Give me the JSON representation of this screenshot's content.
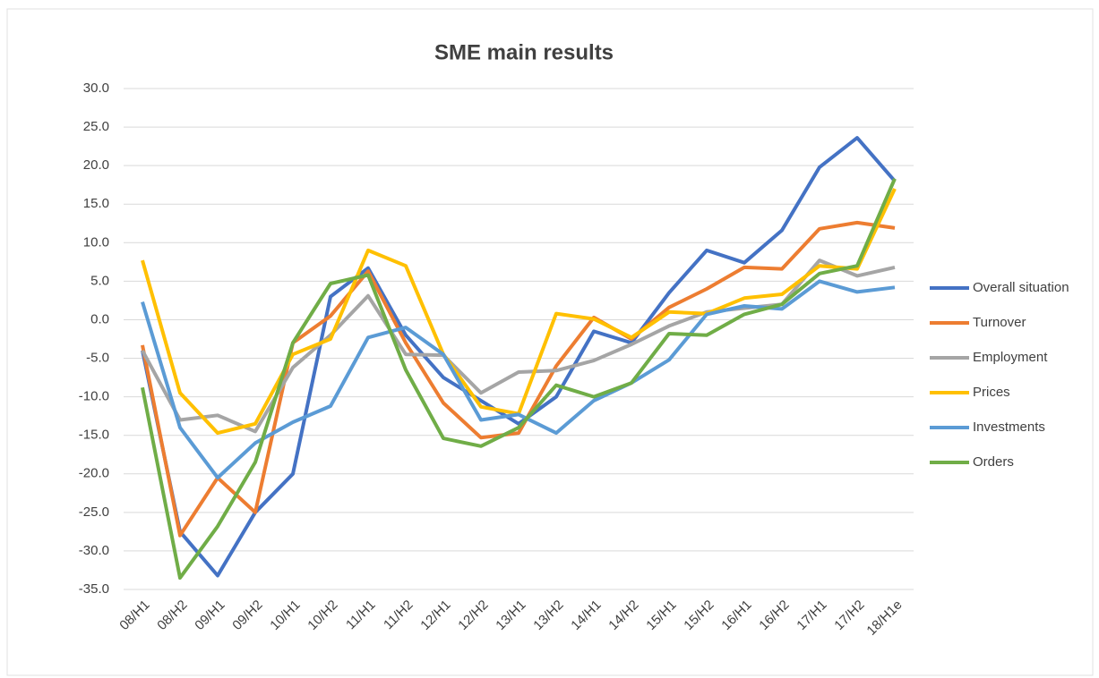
{
  "chart_data": {
    "type": "line",
    "title": "SME main results",
    "categories": [
      "08/H1",
      "08/H2",
      "09/H1",
      "09/H2",
      "10/H1",
      "10/H2",
      "11/H1",
      "11/H2",
      "12/H1",
      "12/H2",
      "13/H1",
      "13/H2",
      "14/H1",
      "14/H2",
      "15/H1",
      "15/H2",
      "16/H1",
      "16/H2",
      "17/H1",
      "17/H2",
      "18/H1e"
    ],
    "series": [
      {
        "name": "Overall situation",
        "color": "#4472c4",
        "values": [
          -4,
          -27.5,
          -33.2,
          -25,
          -20,
          3,
          6.7,
          -2,
          -7.5,
          -10.5,
          -13.5,
          -10,
          -1.5,
          -3,
          3.5,
          9,
          7.4,
          11.6,
          19.8,
          23.6,
          18
        ]
      },
      {
        "name": "Turnover",
        "color": "#ed7d31",
        "values": [
          -3.3,
          -28,
          -20.5,
          -25,
          -3,
          0.5,
          6.3,
          -3,
          -10.8,
          -15.3,
          -14.7,
          -6,
          0.3,
          -2.5,
          1.6,
          4,
          6.8,
          6.6,
          11.8,
          12.6,
          11.9
        ]
      },
      {
        "name": "Employment",
        "color": "#a5a5a5",
        "values": [
          -4,
          -13,
          -12.4,
          -14.5,
          -6.2,
          -2,
          3.1,
          -4.5,
          -4.6,
          -9.5,
          -6.8,
          -6.6,
          -5.3,
          -3.2,
          -0.8,
          1,
          1.5,
          2,
          7.7,
          5.7,
          6.8
        ]
      },
      {
        "name": "Prices",
        "color": "#ffc000",
        "values": [
          7.7,
          -9.5,
          -14.7,
          -13.5,
          -4.5,
          -2.5,
          9,
          7,
          -4.5,
          -11.3,
          -12.2,
          0.8,
          0.1,
          -2.3,
          1,
          0.8,
          2.8,
          3.3,
          7,
          6.6,
          17
        ]
      },
      {
        "name": "Investments",
        "color": "#5b9bd5",
        "values": [
          2.3,
          -14,
          -20.5,
          -16,
          -13.3,
          -11.2,
          -2.3,
          -1,
          -4.5,
          -13,
          -12.3,
          -14.7,
          -10.5,
          -8.2,
          -5.2,
          0.7,
          1.8,
          1.4,
          5,
          3.6,
          4.2
        ]
      },
      {
        "name": "Orders",
        "color": "#70ad47",
        "values": [
          -8.8,
          -33.5,
          -26.8,
          -18.5,
          -3,
          4.7,
          5.8,
          -6.5,
          -15.4,
          -16.4,
          -14,
          -8.5,
          -10,
          -8.2,
          -1.8,
          -2,
          0.7,
          2,
          6,
          7,
          18.3
        ]
      }
    ],
    "ylim": [
      -35,
      30
    ],
    "yticks": [
      {
        "value": -35,
        "label": "-35.0"
      },
      {
        "value": -30,
        "label": "-30.0"
      },
      {
        "value": -25,
        "label": "-25.0"
      },
      {
        "value": -20,
        "label": "-20.0"
      },
      {
        "value": -15,
        "label": "-15.0"
      },
      {
        "value": -10,
        "label": "-10.0"
      },
      {
        "value": -5,
        "label": "-5.0"
      },
      {
        "value": 0,
        "label": "0.0"
      },
      {
        "value": 5,
        "label": "5.0"
      },
      {
        "value": 10,
        "label": "10.0"
      },
      {
        "value": 15,
        "label": "15.0"
      },
      {
        "value": 20,
        "label": "20.0"
      },
      {
        "value": 25,
        "label": "25.0"
      },
      {
        "value": 30,
        "label": "30.0"
      }
    ],
    "grid": true,
    "legend": "right"
  }
}
